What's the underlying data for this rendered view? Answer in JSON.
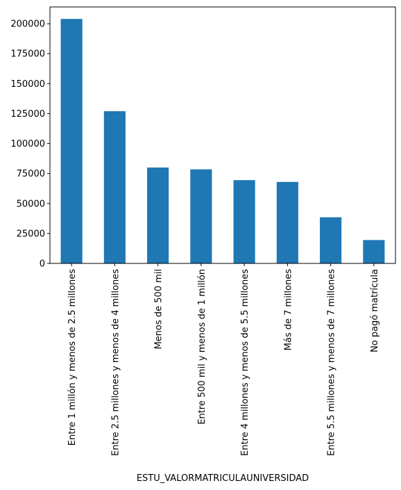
{
  "chart_data": {
    "type": "bar",
    "title": "",
    "xlabel": "ESTU_VALORMATRICULAUNIVERSIDAD",
    "ylabel": "",
    "ylim": [
      0,
      214000
    ],
    "yticks": [
      0,
      25000,
      50000,
      75000,
      100000,
      125000,
      150000,
      175000,
      200000
    ],
    "categories": [
      "Entre 1 millón y menos de 2.5 millones",
      "Entre 2.5 millones y menos de 4 millones",
      "Menos de 500 mil",
      "Entre 500 mil y menos de 1 millón",
      "Entre 4 millones y menos de 5.5 millones",
      "Más de 7 millones",
      "Entre 5.5 millones y menos de 7 millones",
      "No pagó matrícula"
    ],
    "values": [
      204000,
      127000,
      80000,
      78500,
      69500,
      68000,
      38500,
      19500
    ],
    "bar_color": "#1f77b4",
    "grid": false,
    "legend": false
  }
}
